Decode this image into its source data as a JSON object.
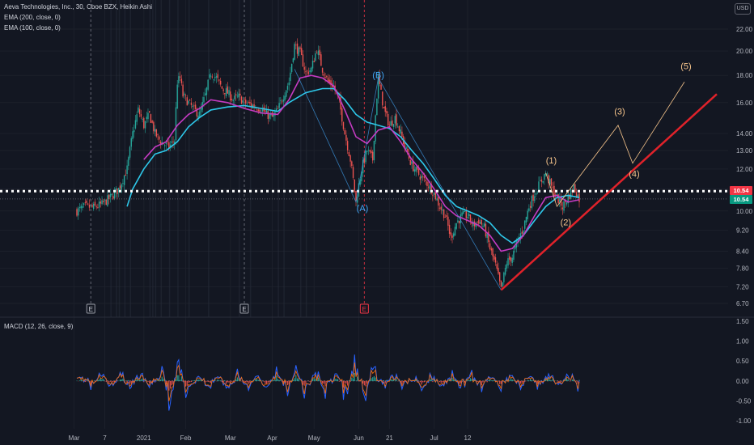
{
  "legend": {
    "symbol": "Aeva Technologies, Inc., 30, Cboe BZX, Heikin Ashi",
    "ema200": "EMA (200, close, 0)",
    "ema100": "EMA (100, close, 0)",
    "macd": "MACD (12, 26, close, 9)"
  },
  "currency": "USD",
  "price_tags": {
    "last": "10.54",
    "ema": "10.54"
  },
  "colors": {
    "background": "#131722",
    "ema200": "#2ec8ea",
    "ema100": "#c53bc2",
    "up_candle": "#26a69a",
    "down_candle": "#ef5350",
    "trendline": "#e0222a",
    "wave_annot": "#f7c58c",
    "abc_annot": "#42a5f5",
    "dotted_level": "#ffffff",
    "macd_line": "#2962ff",
    "signal_line": "#ff6d00"
  },
  "chart_data": [
    {
      "type": "candlestick",
      "price_axis_ticks": [
        "22.00",
        "20.00",
        "18.00",
        "16.00",
        "14.00",
        "13.00",
        "12.00",
        "11.00",
        "10.00",
        "9.20",
        "8.40",
        "7.80",
        "7.20",
        "6.70"
      ],
      "x_axis_ticks": [
        "Mar",
        "7",
        "2021",
        "Feb",
        "Mar",
        "Apr",
        "May",
        "Jun",
        "21",
        "Jul",
        "12"
      ],
      "last_price": 10.54,
      "dotted_level": 10.9,
      "close_path": [
        [
          0,
          10.0
        ],
        [
          3,
          10.2
        ],
        [
          6,
          10.15
        ],
        [
          9,
          10.3
        ],
        [
          12,
          10.6
        ],
        [
          15,
          11.0
        ],
        [
          18,
          12.0
        ],
        [
          20,
          14.0
        ],
        [
          22,
          15.5
        ],
        [
          24,
          14.5
        ],
        [
          26,
          15.2
        ],
        [
          28,
          14.0
        ],
        [
          30,
          13.5
        ],
        [
          33,
          13.2
        ],
        [
          35,
          13.6
        ],
        [
          36,
          17.5
        ],
        [
          37,
          17.8
        ],
        [
          38,
          16.5
        ],
        [
          40,
          16.0
        ],
        [
          42,
          15.5
        ],
        [
          44,
          15.2
        ],
        [
          46,
          16.5
        ],
        [
          48,
          18.2
        ],
        [
          50,
          17.8
        ],
        [
          52,
          17.0
        ],
        [
          54,
          16.7
        ],
        [
          56,
          16.2
        ],
        [
          58,
          16.4
        ],
        [
          60,
          16.0
        ],
        [
          63,
          15.8
        ],
        [
          66,
          15.6
        ],
        [
          68,
          15.2
        ],
        [
          70,
          15.0
        ],
        [
          72,
          15.5
        ],
        [
          74,
          16.5
        ],
        [
          76,
          17.5
        ],
        [
          78,
          20.5
        ],
        [
          80,
          19.8
        ],
        [
          82,
          18.2
        ],
        [
          84,
          18.5
        ],
        [
          86,
          20.2
        ],
        [
          88,
          18.5
        ],
        [
          90,
          17.5
        ],
        [
          92,
          17.2
        ],
        [
          94,
          16.0
        ],
        [
          96,
          14.0
        ],
        [
          98,
          12.5
        ],
        [
          100,
          10.4
        ],
        [
          102,
          12.0
        ],
        [
          104,
          13.0
        ],
        [
          106,
          12.5
        ],
        [
          108,
          17.8
        ],
        [
          110,
          15.5
        ],
        [
          112,
          14.5
        ],
        [
          114,
          15.0
        ],
        [
          116,
          14.0
        ],
        [
          118,
          13.0
        ],
        [
          120,
          12.2
        ],
        [
          122,
          11.8
        ],
        [
          124,
          11.5
        ],
        [
          126,
          11.2
        ],
        [
          128,
          10.8
        ],
        [
          130,
          10.2
        ],
        [
          132,
          9.8
        ],
        [
          134,
          8.9
        ],
        [
          136,
          9.5
        ],
        [
          138,
          9.8
        ],
        [
          140,
          9.8
        ],
        [
          142,
          9.4
        ],
        [
          144,
          9.6
        ],
        [
          146,
          9.3
        ],
        [
          148,
          8.5
        ],
        [
          150,
          7.9
        ],
        [
          152,
          7.1
        ],
        [
          154,
          8.0
        ],
        [
          156,
          8.2
        ],
        [
          158,
          8.8
        ],
        [
          160,
          9.3
        ],
        [
          162,
          10.2
        ],
        [
          164,
          10.8
        ],
        [
          166,
          11.3
        ],
        [
          168,
          11.8
        ],
        [
          170,
          11.1
        ],
        [
          172,
          10.6
        ],
        [
          174,
          10.2
        ],
        [
          176,
          10.6
        ],
        [
          178,
          11.1
        ],
        [
          180,
          10.54
        ]
      ],
      "ema200_path": [
        [
          18,
          10.2
        ],
        [
          20,
          11.0
        ],
        [
          24,
          12.0
        ],
        [
          28,
          12.8
        ],
        [
          32,
          13.0
        ],
        [
          36,
          13.5
        ],
        [
          40,
          14.4
        ],
        [
          44,
          15.0
        ],
        [
          48,
          15.5
        ],
        [
          54,
          15.7
        ],
        [
          60,
          15.8
        ],
        [
          66,
          15.6
        ],
        [
          72,
          15.4
        ],
        [
          76,
          16.0
        ],
        [
          82,
          16.7
        ],
        [
          88,
          17.0
        ],
        [
          92,
          17.0
        ],
        [
          96,
          16.2
        ],
        [
          100,
          15.2
        ],
        [
          104,
          14.7
        ],
        [
          108,
          14.5
        ],
        [
          112,
          14.3
        ],
        [
          116,
          13.8
        ],
        [
          120,
          13.0
        ],
        [
          124,
          12.3
        ],
        [
          128,
          11.5
        ],
        [
          132,
          10.7
        ],
        [
          136,
          10.2
        ],
        [
          140,
          10.0
        ],
        [
          144,
          9.8
        ],
        [
          148,
          9.5
        ],
        [
          152,
          9.0
        ],
        [
          156,
          8.7
        ],
        [
          160,
          9.0
        ],
        [
          164,
          9.6
        ],
        [
          168,
          10.2
        ],
        [
          172,
          10.6
        ],
        [
          176,
          10.7
        ],
        [
          180,
          10.6
        ]
      ],
      "ema100_path": [
        [
          24,
          12.5
        ],
        [
          28,
          13.2
        ],
        [
          32,
          13.5
        ],
        [
          36,
          14.5
        ],
        [
          40,
          15.2
        ],
        [
          44,
          15.6
        ],
        [
          48,
          16.2
        ],
        [
          54,
          16.0
        ],
        [
          60,
          15.6
        ],
        [
          66,
          15.3
        ],
        [
          72,
          15.2
        ],
        [
          76,
          16.2
        ],
        [
          80,
          17.8
        ],
        [
          84,
          18.0
        ],
        [
          88,
          17.8
        ],
        [
          92,
          17.2
        ],
        [
          96,
          15.5
        ],
        [
          100,
          13.8
        ],
        [
          104,
          13.4
        ],
        [
          108,
          14.2
        ],
        [
          112,
          14.4
        ],
        [
          116,
          13.5
        ],
        [
          120,
          12.5
        ],
        [
          124,
          11.8
        ],
        [
          128,
          11.0
        ],
        [
          132,
          10.2
        ],
        [
          136,
          9.8
        ],
        [
          140,
          9.6
        ],
        [
          144,
          9.4
        ],
        [
          148,
          9.0
        ],
        [
          152,
          8.4
        ],
        [
          156,
          8.5
        ],
        [
          160,
          9.0
        ],
        [
          164,
          9.8
        ],
        [
          168,
          10.6
        ],
        [
          172,
          10.7
        ],
        [
          176,
          10.4
        ],
        [
          180,
          10.5
        ]
      ],
      "annotations": [
        {
          "label": "(B)",
          "price": 17.8,
          "group": "abc"
        },
        {
          "label": "(A)",
          "price": 10.0,
          "group": "abc"
        },
        {
          "label": "(1)",
          "price": 12.3,
          "group": "wave"
        },
        {
          "label": "(2)",
          "price": 9.4,
          "group": "wave"
        },
        {
          "label": "(3)",
          "price": 15.2,
          "group": "wave"
        },
        {
          "label": "(4)",
          "price": 11.6,
          "group": "wave"
        },
        {
          "label": "(5)",
          "price": 18.5,
          "group": "wave"
        }
      ],
      "event_markers": [
        "E",
        "E",
        "E"
      ]
    },
    {
      "type": "macd",
      "axis_ticks": [
        "1.50",
        "1.00",
        "0.50",
        "0.00",
        "-0.50",
        "-1.00"
      ],
      "ylim": [
        -1.0,
        1.5
      ]
    }
  ]
}
